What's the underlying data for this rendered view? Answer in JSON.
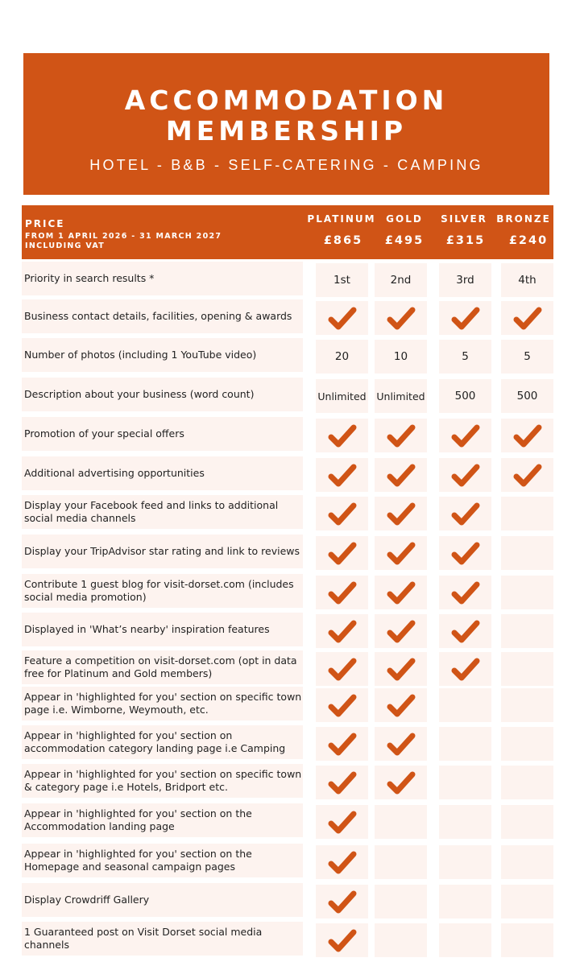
{
  "banner": {
    "title_line1": "ACCOMMODATION",
    "title_line2": "MEMBERSHIP",
    "subtitle": "HOTEL -  B&B - SELF-CATERING - CAMPING"
  },
  "colors": {
    "accent": "#d05416",
    "cell_bg": "#fdf3ef",
    "text": "#222222"
  },
  "header": {
    "price_label": "PRICE",
    "period_line1": "FROM 1 APRIL 2026 - 31 MARCH 2027",
    "period_line2": "INCLUDING VAT",
    "tiers": [
      {
        "name": "PLATINUM",
        "price": "£865"
      },
      {
        "name": "GOLD",
        "price": "£495"
      },
      {
        "name": "SILVER",
        "price": "£315"
      },
      {
        "name": "BRONZE",
        "price": "£240"
      }
    ]
  },
  "rows": [
    {
      "label": "Priority in search results *",
      "values": [
        "1st",
        "2nd",
        "3rd",
        "4th"
      ]
    },
    {
      "label": "Business contact details, facilities, opening & awards",
      "values": [
        "check",
        "check",
        "check",
        "check"
      ]
    },
    {
      "label": "Number of photos (including 1 YouTube video)",
      "values": [
        "20",
        "10",
        "5",
        "5"
      ]
    },
    {
      "label": "Description about your business (word count)",
      "values": [
        "Unlimited",
        "Unlimited",
        "500",
        "500"
      ]
    },
    {
      "label": "Promotion of your special offers",
      "values": [
        "check",
        "check",
        "check",
        "check"
      ]
    },
    {
      "label": "Additional advertising opportunities",
      "values": [
        "check",
        "check",
        "check",
        "check"
      ]
    },
    {
      "label": "Display your Facebook feed and links to additional social media channels",
      "values": [
        "check",
        "check",
        "check",
        ""
      ]
    },
    {
      "label": "Display your TripAdvisor star rating and link to reviews",
      "values": [
        "check",
        "check",
        "check",
        ""
      ]
    },
    {
      "label": "Contribute 1 guest blog for visit-dorset.com (includes social media promotion)",
      "values": [
        "check",
        "check",
        "check",
        ""
      ]
    },
    {
      "label": "Displayed in 'What’s nearby' inspiration features",
      "values": [
        "check",
        "check",
        "check",
        ""
      ]
    },
    {
      "label": "Feature a competition on visit-dorset.com (opt in data free for Platinum and Gold members)",
      "values": [
        "check",
        "check",
        "check",
        ""
      ]
    },
    {
      "label": "Appear in 'highlighted for you' section on specific town page i.e. Wimborne, Weymouth, etc.",
      "values": [
        "check",
        "check",
        "",
        ""
      ]
    },
    {
      "label": "Appear in 'highlighted for you' section on accommodation category landing page i.e Camping",
      "values": [
        "check",
        "check",
        "",
        ""
      ]
    },
    {
      "label": "Appear in 'highlighted for you' section on specific town & category page i.e Hotels, Bridport etc.",
      "values": [
        "check",
        "check",
        "",
        ""
      ]
    },
    {
      "label": "Appear in 'highlighted for you' section on the Accommodation landing page",
      "values": [
        "check",
        "",
        "",
        ""
      ]
    },
    {
      "label": "Appear in 'highlighted for you' section on the Homepage and seasonal campaign pages",
      "values": [
        "check",
        "",
        "",
        ""
      ]
    },
    {
      "label": "Display Crowdriff Gallery",
      "values": [
        "check",
        "",
        "",
        ""
      ]
    },
    {
      "label": "1 Guaranteed post on Visit Dorset social media channels",
      "values": [
        "check",
        "",
        "",
        ""
      ]
    }
  ]
}
